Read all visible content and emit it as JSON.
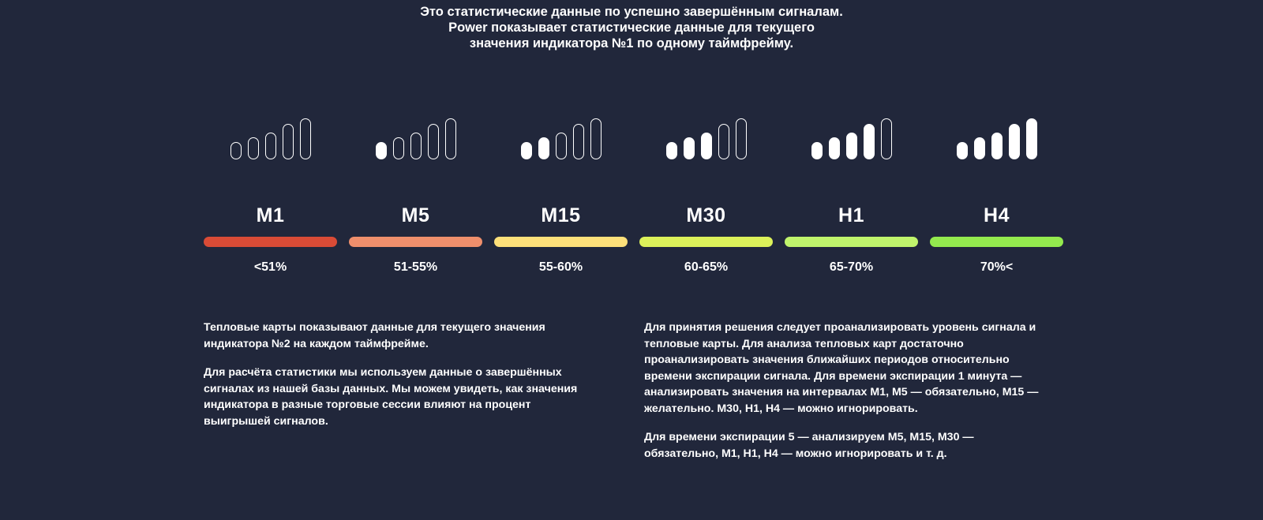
{
  "intro": {
    "lines": [
      "Это статистические данные по успешно завершённым сигналам.",
      "Power показывает статистические данные для текущего",
      "значения индикатора №1 по одному таймфрейму."
    ]
  },
  "levels": [
    {
      "timeframe": "M1",
      "range": "<51%",
      "color": "#d94b36",
      "filled_bars": 0
    },
    {
      "timeframe": "M5",
      "range": "51-55%",
      "color": "#ef8f6c",
      "filled_bars": 1
    },
    {
      "timeframe": "M15",
      "range": "55-60%",
      "color": "#fde07a",
      "filled_bars": 2
    },
    {
      "timeframe": "M30",
      "range": "60-65%",
      "color": "#dcf15a",
      "filled_bars": 3
    },
    {
      "timeframe": "H1",
      "range": "65-70%",
      "color": "#c0f46c",
      "filled_bars": 4
    },
    {
      "timeframe": "H4",
      "range": "70%<",
      "color": "#94ea4e",
      "filled_bars": 5
    }
  ],
  "left_text": {
    "p1": [
      "Тепловые карты показывают данные для текущего значения",
      "индикатора №2 на каждом таймфрейме."
    ],
    "p2": [
      "Для расчёта статистики мы используем данные о завершённых",
      "сигналах из нашей базы данных. Мы можем увидеть, как значения",
      "индикатора в разные торговые сессии влияют на процент",
      "выигрышей сигналов."
    ]
  },
  "right_text": {
    "p1": [
      "Для принятия решения следует проанализировать уровень сигнала и",
      "тепловые карты. Для анализа тепловых карт достаточно",
      "проанализировать значения ближайших периодов относительно",
      "времени экспирации сигнала. Для времени экспирации 1 минута —",
      "анализировать значения на интервалах M1, M5 — обязательно, M15 —",
      "желательно. M30, H1, H4 — можно игнорировать."
    ],
    "p2": [
      "Для времени экспирации 5 — анализируем M5, M15, M30 —",
      "обязательно, M1, H1, H4 — можно игнорировать и т. д."
    ]
  }
}
